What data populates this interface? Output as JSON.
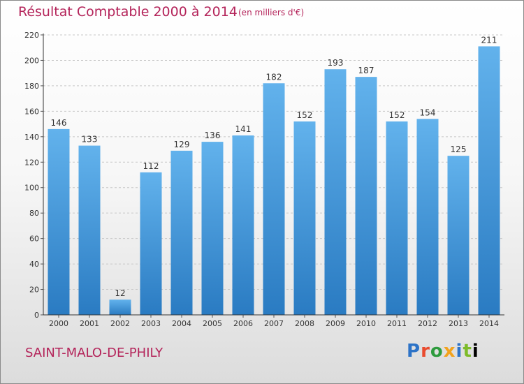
{
  "title": "Résultat Comptable 2000 à 2014",
  "subtitle": "(en milliers d'€)",
  "city": "SAINT-MALO-DE-PHILY",
  "logo": [
    "P",
    "r",
    "o",
    "x",
    "i",
    "t",
    "i"
  ],
  "colors": {
    "bar": "#3e8fd6",
    "bar_light": "#62b2ec",
    "title": "#b4245a"
  },
  "chart_data": {
    "type": "bar",
    "categories": [
      "2000",
      "2001",
      "2002",
      "2003",
      "2004",
      "2005",
      "2006",
      "2007",
      "2008",
      "2009",
      "2010",
      "2011",
      "2012",
      "2013",
      "2014"
    ],
    "values": [
      146,
      133,
      12,
      112,
      129,
      136,
      141,
      182,
      152,
      193,
      187,
      152,
      154,
      125,
      211
    ],
    "ylim": [
      0,
      220
    ],
    "yticks": [
      0,
      20,
      40,
      60,
      80,
      100,
      120,
      140,
      160,
      180,
      200,
      220
    ],
    "grid": true,
    "title": "Résultat Comptable 2000 à 2014",
    "subtitle": "(en milliers d'€)"
  }
}
